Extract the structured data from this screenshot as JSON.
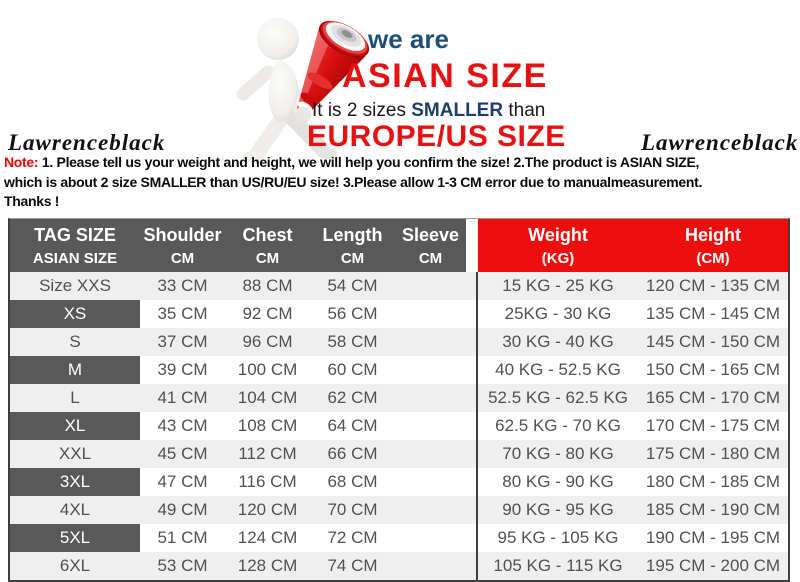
{
  "banner": {
    "we_are": "we are",
    "asian_size": "ASIAN SIZE",
    "smaller_prefix": "It is 2 sizes ",
    "smaller_word": "SMALLER",
    "smaller_suffix": " than",
    "europe_size": "EUROPE/US SIZE",
    "mascot": "figure-with-megaphone"
  },
  "brand_left": "Lawrenceblack",
  "brand_right": "Lawrenceblack",
  "note": {
    "label": "Note:",
    "line1_rest": " 1. Please tell us your weight and height, we will help you confirm the size!  2.The product is ASIAN SIZE,",
    "line2": "which is about 2 size SMALLER than US/RU/EU size!  3.Please allow 1-3 CM error due to manualmeasurement.",
    "line3": "Thanks !"
  },
  "table": {
    "columns": [
      {
        "title": "TAG SIZE",
        "subtitle": "ASIAN SIZE"
      },
      {
        "title": "Shoulder",
        "subtitle": "CM"
      },
      {
        "title": "Chest",
        "subtitle": "CM"
      },
      {
        "title": "Length",
        "subtitle": "CM"
      },
      {
        "title": "Sleeve",
        "subtitle": "CM"
      },
      {
        "title": "Weight",
        "subtitle": "(KG)"
      },
      {
        "title": "Height",
        "subtitle": "(CM)"
      }
    ],
    "rows": [
      {
        "size": "Size XXS",
        "shoulder": "33 CM",
        "chest": "88 CM",
        "length": "54 CM",
        "sleeve": "",
        "weight": "15 KG - 25 KG",
        "height": "120 CM  - 135 CM"
      },
      {
        "size": "XS",
        "shoulder": "35 CM",
        "chest": "92 CM",
        "length": "56 CM",
        "sleeve": "",
        "weight": "25KG  - 30 KG",
        "height": "135 CM - 145 CM"
      },
      {
        "size": "S",
        "shoulder": "37 CM",
        "chest": "96 CM",
        "length": "58 CM",
        "sleeve": "",
        "weight": "30 KG - 40 KG",
        "height": "145 CM  - 150 CM"
      },
      {
        "size": "M",
        "shoulder": "39 CM",
        "chest": "100 CM",
        "length": "60 CM",
        "sleeve": "",
        "weight": "40 KG - 52.5 KG",
        "height": "150 CM  - 165 CM"
      },
      {
        "size": "L",
        "shoulder": "41 CM",
        "chest": "104 CM",
        "length": "62 CM",
        "sleeve": "",
        "weight": "52.5 KG  - 62.5 KG",
        "height": "165 CM  - 170 CM"
      },
      {
        "size": "XL",
        "shoulder": "43 CM",
        "chest": "108 CM",
        "length": "64 CM",
        "sleeve": "",
        "weight": "62.5 KG - 70 KG",
        "height": "170 CM  - 175 CM"
      },
      {
        "size": "XXL",
        "shoulder": "45 CM",
        "chest": "112 CM",
        "length": "66 CM",
        "sleeve": "",
        "weight": "70 KG  - 80  KG",
        "height": "175 CM  - 180 CM"
      },
      {
        "size": "3XL",
        "shoulder": "47 CM",
        "chest": "116 CM",
        "length": "68 CM",
        "sleeve": "",
        "weight": "80 KG  - 90  KG",
        "height": "180 CM  - 185 CM"
      },
      {
        "size": "4XL",
        "shoulder": "49 CM",
        "chest": "120 CM",
        "length": "70 CM",
        "sleeve": "",
        "weight": "90 KG  - 95 KG",
        "height": "185 CM  - 190 CM"
      },
      {
        "size": "5XL",
        "shoulder": "51 CM",
        "chest": "124 CM",
        "length": "72 CM",
        "sleeve": "",
        "weight": "95 KG - 105 KG",
        "height": "190 CM  - 195 CM"
      },
      {
        "size": "6XL",
        "shoulder": "53 CM",
        "chest": "128 CM",
        "length": "74 CM",
        "sleeve": "",
        "weight": "105 KG - 115 KG",
        "height": "195 CM  - 200 CM"
      }
    ]
  },
  "colors": {
    "accent_red": "#ED0E0E",
    "header_gray": "#595959",
    "navy": "#1F3D6B",
    "steel_blue": "#1F4E79",
    "alt_row": "#efefef"
  }
}
